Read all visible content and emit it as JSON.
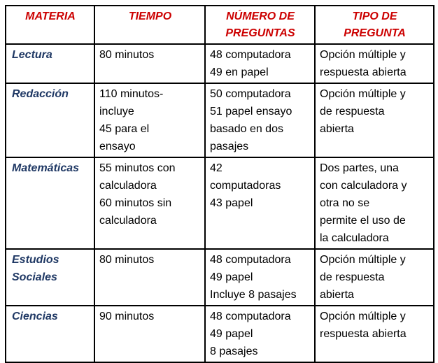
{
  "colors": {
    "header_text": "#cc0000",
    "subject_text": "#1f3864",
    "body_text": "#000000",
    "grid_border": "#000000",
    "background": "#ffffff"
  },
  "table": {
    "headers": {
      "materia": "MATERIA",
      "tiempo": "TIEMPO",
      "numero": "NÚMERO DE\nPREGUNTAS",
      "tipo": "TIPO DE\nPREGUNTA"
    },
    "rows": [
      {
        "cells": [
          "Lectura",
          "80 minutos",
          "48 computadora\n49 en papel",
          "Opción múltiple y\nrespuesta abierta"
        ]
      },
      {
        "cells": [
          "Redacción",
          "110 minutos-\nincluye\n45 para el\nensayo",
          "50 computadora\n51 papel ensayo\nbasado en dos\npasajes",
          "Opción múltiple y\nde respuesta\nabierta"
        ]
      },
      {
        "cells": [
          "Matemáticas",
          "55 minutos con\ncalculadora\n60 minutos sin\ncalculadora",
          "42\ncomputadoras\n43 papel",
          "Dos partes, una\ncon calculadora y\notra no se\npermite el uso de\nla calculadora"
        ]
      },
      {
        "cells": [
          "Estudios\nSociales",
          "80 minutos",
          "48 computadora\n49 papel\nIncluye 8 pasajes",
          "Opción múltiple y\nde respuesta\nabierta"
        ]
      },
      {
        "cells": [
          "Ciencias",
          "90 minutos",
          "48 computadora\n49 papel\n8 pasajes",
          "Opción múltiple y\nrespuesta abierta"
        ]
      }
    ]
  }
}
